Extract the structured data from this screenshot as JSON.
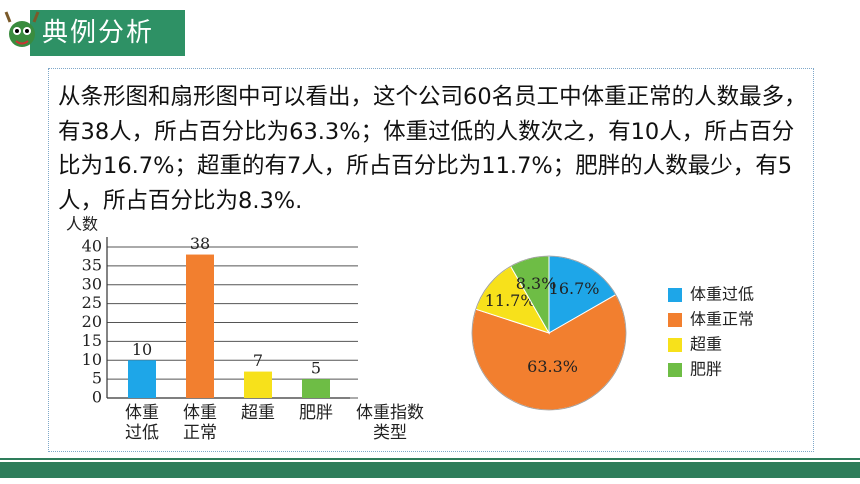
{
  "header": {
    "title": "典例分析"
  },
  "text": "从条形图和扇形图中可以看出，这个公司60名员工中体重正常的人数最多，有38人，所占百分比为63.3%；体重过低的人数次之，有10人，所占百分比为16.7%；超重的有7人，所占百分比为11.7%；肥胖的人数最少，有5人，所占百分比为8.3%.",
  "chart_data": [
    {
      "type": "bar",
      "y_label": "人数",
      "x_label": "体重指数类型",
      "categories": [
        "体重过低",
        "体重正常",
        "超重",
        "肥胖"
      ],
      "values": [
        10,
        38,
        7,
        5
      ],
      "colors": [
        "#1ea6e8",
        "#f27f2f",
        "#f7e11b",
        "#6ebd45"
      ],
      "ylim": [
        0,
        40
      ],
      "yticks": [
        0,
        5,
        10,
        15,
        20,
        25,
        30,
        35,
        40
      ],
      "grid": true
    },
    {
      "type": "pie",
      "categories": [
        "体重过低",
        "体重正常",
        "超重",
        "肥胖"
      ],
      "values": [
        16.7,
        63.3,
        11.7,
        8.3
      ],
      "value_labels": [
        "16.7%",
        "63.3%",
        "11.7%",
        "8.3%"
      ],
      "colors": [
        "#1ea6e8",
        "#f27f2f",
        "#f7e11b",
        "#6ebd45"
      ],
      "legend": "right"
    }
  ]
}
